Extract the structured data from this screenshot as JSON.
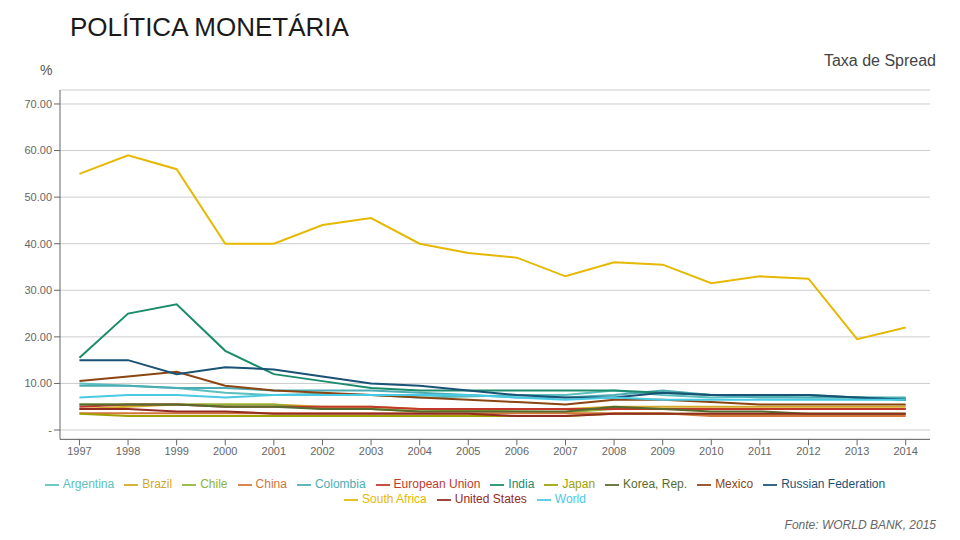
{
  "chart_data": {
    "type": "line",
    "title": "POLÍTICA MONETÁRIA",
    "subtitle": "Taxa de Spread",
    "ylabel": "%",
    "source": "Fonte: WORLD BANK, 2015",
    "x": [
      1997,
      1998,
      1999,
      2000,
      2001,
      2002,
      2003,
      2004,
      2005,
      2006,
      2007,
      2008,
      2009,
      2010,
      2011,
      2012,
      2013,
      2014
    ],
    "xlim": [
      1996.6,
      2014.5
    ],
    "xticks": [
      1997,
      1998,
      1999,
      2000,
      2001,
      2002,
      2003,
      2004,
      2005,
      2006,
      2007,
      2008,
      2009,
      2010,
      2011,
      2012,
      2013,
      2014
    ],
    "ylim": [
      -2,
      73
    ],
    "yticks": [
      {
        "value": 0,
        "label": "-"
      },
      {
        "value": 10,
        "label": "10.00"
      },
      {
        "value": 20,
        "label": "20.00"
      },
      {
        "value": 30,
        "label": "30.00"
      },
      {
        "value": 40,
        "label": "40.00"
      },
      {
        "value": 50,
        "label": "50.00"
      },
      {
        "value": 60,
        "label": "60.00"
      },
      {
        "value": 70,
        "label": "70.00"
      }
    ],
    "grid": true,
    "legend": "bottom",
    "series": [
      {
        "name": "Argentina",
        "color": "#5bbfbf",
        "values": [
          10.0,
          9.5,
          9.0,
          8.0,
          7.5,
          7.8,
          7.5,
          7.0,
          7.2,
          7.5,
          7.5,
          8.5,
          7.5,
          7.0,
          7.2,
          7.0,
          7.0,
          6.8
        ]
      },
      {
        "name": "Brazil",
        "color": "#d4a827",
        "values": [
          4.5,
          5.0,
          5.5,
          5.5,
          5.5,
          5.0,
          5.0,
          4.5,
          4.5,
          4.5,
          4.5,
          5.0,
          5.0,
          5.0,
          5.0,
          5.0,
          5.0,
          5.0
        ]
      },
      {
        "name": "Chile",
        "color": "#8db33a",
        "values": [
          5.5,
          5.5,
          5.5,
          5.5,
          5.5,
          4.5,
          4.5,
          4.0,
          4.2,
          4.0,
          3.8,
          4.5,
          4.5,
          4.5,
          4.5,
          4.5,
          4.5,
          4.5
        ]
      },
      {
        "name": "China",
        "color": "#d4753a",
        "values": [
          3.6,
          3.6,
          3.6,
          3.6,
          3.6,
          3.6,
          3.6,
          3.6,
          3.6,
          3.6,
          3.6,
          3.6,
          3.6,
          3.0,
          3.0,
          3.0,
          3.0,
          3.0
        ]
      },
      {
        "name": "Colombia",
        "color": "#4badb3",
        "values": [
          9.5,
          9.5,
          9.0,
          9.0,
          8.5,
          8.5,
          8.5,
          8.0,
          7.5,
          7.0,
          7.0,
          7.5,
          8.5,
          7.5,
          7.0,
          7.0,
          7.0,
          7.0
        ]
      },
      {
        "name": "European Union",
        "color": "#c0392b",
        "values": [
          5.0,
          5.5,
          5.5,
          5.0,
          5.0,
          5.0,
          5.0,
          4.5,
          4.5,
          4.5,
          4.5,
          4.5,
          4.5,
          4.5,
          4.5,
          4.5,
          4.5,
          4.5
        ]
      },
      {
        "name": "India",
        "color": "#1a8b6b",
        "values": [
          15.5,
          25.0,
          27.0,
          17.0,
          12.0,
          10.5,
          9.0,
          8.5,
          8.5,
          8.5,
          8.5,
          8.5,
          8.0,
          7.5,
          7.5,
          7.5,
          7.0,
          6.5
        ]
      },
      {
        "name": "Japan",
        "color": "#a0a000",
        "values": [
          3.5,
          3.0,
          3.0,
          3.0,
          3.0,
          3.0,
          3.0,
          3.0,
          3.0,
          3.0,
          3.0,
          3.5,
          3.5,
          3.5,
          3.5,
          3.5,
          3.5,
          3.5
        ]
      },
      {
        "name": "Korea, Rep.",
        "color": "#556b2f",
        "values": [
          5.5,
          5.5,
          5.5,
          5.0,
          5.0,
          4.5,
          4.5,
          4.0,
          4.0,
          4.0,
          4.0,
          5.0,
          4.5,
          4.0,
          4.0,
          3.5,
          3.5,
          3.5
        ]
      },
      {
        "name": "Mexico",
        "color": "#8b4513",
        "values": [
          10.5,
          11.5,
          12.5,
          9.5,
          8.5,
          8.0,
          7.5,
          7.0,
          6.5,
          6.0,
          5.5,
          6.5,
          6.5,
          6.0,
          5.5,
          5.5,
          5.5,
          5.5
        ]
      },
      {
        "name": "Russian Federation",
        "color": "#1a5276",
        "values": [
          15.0,
          15.0,
          12.0,
          13.5,
          13.0,
          11.5,
          10.0,
          9.5,
          8.5,
          7.5,
          7.0,
          7.0,
          8.0,
          7.5,
          7.5,
          7.5,
          7.0,
          6.5
        ]
      },
      {
        "name": "United States",
        "color": "#922b21",
        "values": [
          4.5,
          4.5,
          4.0,
          4.0,
          3.5,
          3.5,
          3.5,
          3.5,
          3.5,
          3.0,
          3.0,
          3.5,
          3.5,
          3.5,
          3.5,
          3.5,
          3.5,
          3.5
        ]
      },
      {
        "name": "World",
        "color": "#48cae4",
        "values": [
          7.0,
          7.5,
          7.5,
          7.0,
          7.5,
          7.5,
          7.5,
          7.5,
          7.5,
          7.0,
          6.5,
          7.0,
          6.5,
          6.5,
          6.5,
          6.5,
          6.5,
          6.5
        ]
      },
      {
        "name": "South Africa",
        "color": "#e6b800",
        "values": [
          55.0,
          59.0,
          56.0,
          40.0,
          40.0,
          44.0,
          45.5,
          40.0,
          38.0,
          37.0,
          33.0,
          36.0,
          35.5,
          31.5,
          33.0,
          32.5,
          19.5,
          22.0
        ]
      }
    ]
  }
}
